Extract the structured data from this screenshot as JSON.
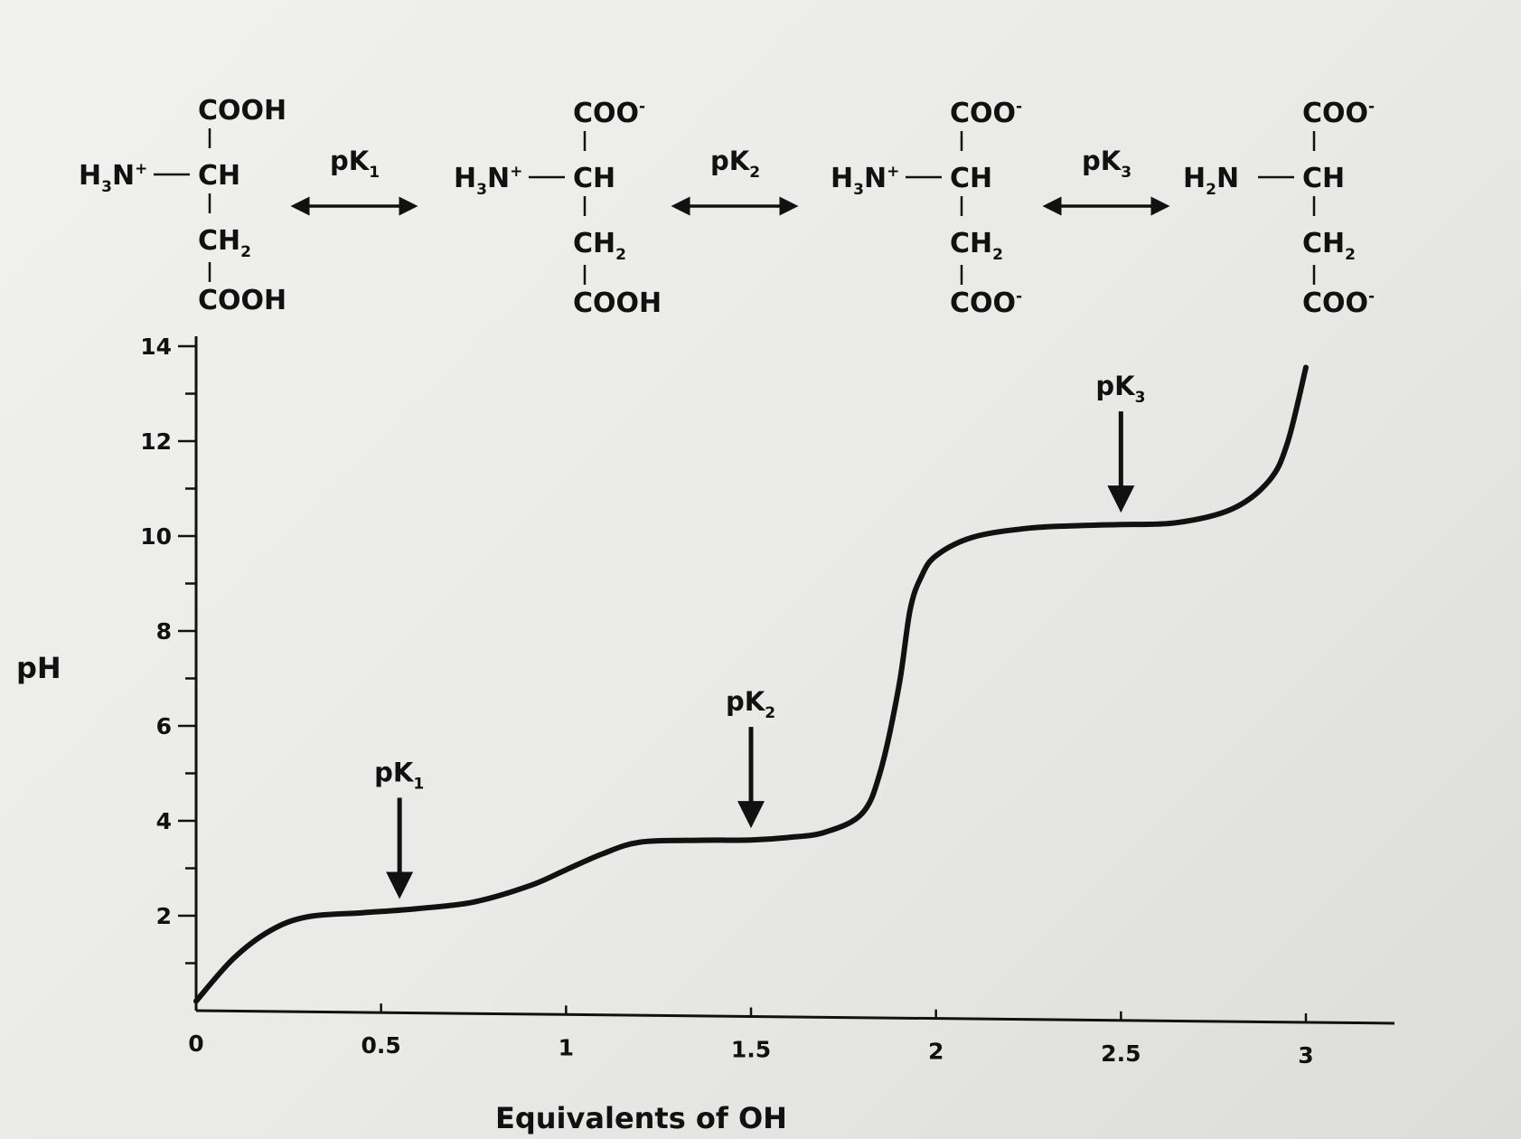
{
  "chart_data": {
    "type": "line",
    "title": "",
    "xlabel": "Equivalents of OH",
    "ylabel": "pH",
    "xlim": [
      0,
      3.1
    ],
    "ylim": [
      0,
      14
    ],
    "x_ticks": [
      "0",
      "0.5",
      "1",
      "1.5",
      "2",
      "2.5",
      "3"
    ],
    "y_ticks": [
      "2",
      "4",
      "6",
      "8",
      "10",
      "12",
      "14"
    ],
    "grid": false,
    "legend": "none",
    "series": [
      {
        "name": "",
        "x": [
          0,
          0.1,
          0.2,
          0.3,
          0.45,
          0.6,
          0.75,
          0.9,
          1.0,
          1.1,
          1.2,
          1.35,
          1.5,
          1.6,
          1.7,
          1.8,
          1.85,
          1.9,
          1.93,
          1.96,
          2.0,
          2.1,
          2.25,
          2.4,
          2.5,
          2.65,
          2.8,
          2.9,
          2.95,
          3.0
        ],
        "y": [
          0.2,
          1.1,
          1.7,
          2.0,
          2.1,
          2.2,
          2.35,
          2.7,
          3.05,
          3.4,
          3.65,
          3.7,
          3.72,
          3.78,
          3.9,
          4.3,
          5.2,
          7.0,
          8.6,
          9.3,
          9.75,
          10.15,
          10.35,
          10.42,
          10.45,
          10.5,
          10.8,
          11.4,
          12.2,
          13.8
        ]
      }
    ],
    "annotations": [
      {
        "text": "pK",
        "subscript": "1",
        "x": 0.55,
        "y": 2.15
      },
      {
        "text": "pK",
        "subscript": "2",
        "x": 1.5,
        "y": 3.72
      },
      {
        "text": "pK",
        "subscript": "3",
        "x": 2.5,
        "y": 10.45
      }
    ]
  },
  "structures": [
    {
      "top": "COOH",
      "amine": "H",
      "amine_sub": "3",
      "amine_rest": "N",
      "amine_charge": "+",
      "ch": "CH",
      "ch2": "CH",
      "ch2_sub": "2",
      "bottom": "COOH",
      "top_charge": "",
      "bottom_charge": ""
    },
    {
      "top": "COO",
      "amine": "H",
      "amine_sub": "3",
      "amine_rest": "N",
      "amine_charge": "+",
      "ch": "CH",
      "ch2": "CH",
      "ch2_sub": "2",
      "bottom": "COOH",
      "top_charge": "-",
      "bottom_charge": ""
    },
    {
      "top": "COO",
      "amine": "H",
      "amine_sub": "3",
      "amine_rest": "N",
      "amine_charge": "+",
      "ch": "CH",
      "ch2": "CH",
      "ch2_sub": "2",
      "bottom": "COO",
      "top_charge": "-",
      "bottom_charge": "-"
    },
    {
      "top": "COO",
      "amine": "H",
      "amine_sub": "2",
      "amine_rest": "N",
      "amine_charge": "",
      "ch": "CH",
      "ch2": "CH",
      "ch2_sub": "2",
      "bottom": "COO",
      "top_charge": "-",
      "bottom_charge": "-"
    }
  ],
  "equilibria": [
    {
      "text": "pK",
      "subscript": "1"
    },
    {
      "text": "pK",
      "subscript": "2"
    },
    {
      "text": "pK",
      "subscript": "3"
    }
  ]
}
